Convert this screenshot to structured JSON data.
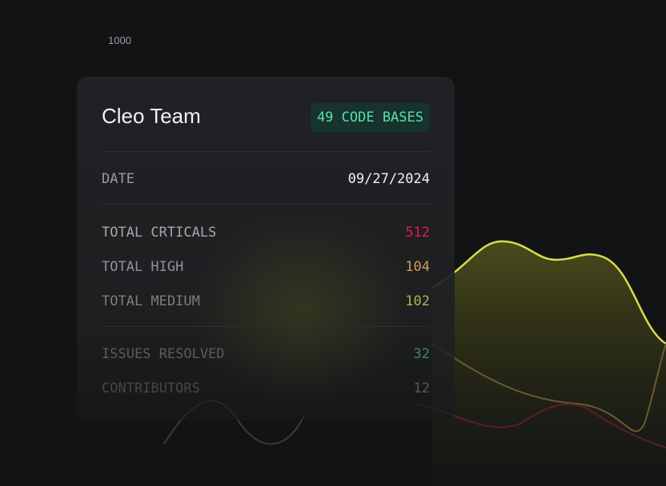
{
  "axis_label": "1000",
  "card": {
    "title": "Cleo Team",
    "badge": "49 CODE BASES",
    "date": {
      "label": "DATE",
      "value": "09/27/2024"
    },
    "stats": [
      {
        "label": "TOTAL CRTICALS",
        "value": 512
      },
      {
        "label": "TOTAL HIGH",
        "value": 104
      },
      {
        "label": "TOTAL MEDIUM",
        "value": 102
      }
    ],
    "activity": [
      {
        "label": "ISSUES RESOLVED",
        "value": 32
      },
      {
        "label": "CONTRIBUTORS",
        "value": 12
      }
    ]
  }
}
